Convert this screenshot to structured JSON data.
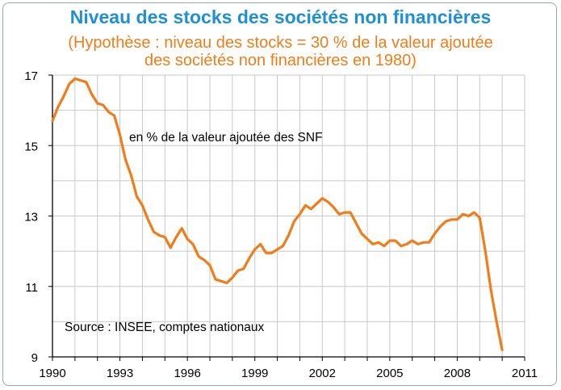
{
  "chart_data": {
    "type": "line",
    "title": "Niveau des stocks des sociétés non financières",
    "subtitle_lines": [
      "(Hypothèse : niveau des stocks = 30 % de la valeur ajoutée",
      "des sociétés non financières en 1980)"
    ],
    "ylabel_note": "en % de la valeur ajoutée des SNF",
    "source": "Source : INSEE, comptes nationaux",
    "xlim": [
      1990,
      2011
    ],
    "ylim": [
      9,
      17
    ],
    "x_ticks": [
      1990,
      1993,
      1996,
      1999,
      2002,
      2005,
      2008,
      2011
    ],
    "y_ticks": [
      9,
      11,
      13,
      15,
      17
    ],
    "grid": true,
    "series": [
      {
        "name": "Niveau des stocks",
        "color": "#f07d1a",
        "x": [
          1990.0,
          1990.25,
          1990.5,
          1990.75,
          1991.0,
          1991.25,
          1991.5,
          1991.75,
          1992.0,
          1992.25,
          1992.5,
          1992.75,
          1993.0,
          1993.25,
          1993.5,
          1993.75,
          1994.0,
          1994.25,
          1994.5,
          1994.75,
          1995.0,
          1995.25,
          1995.5,
          1995.75,
          1996.0,
          1996.25,
          1996.5,
          1996.75,
          1997.0,
          1997.25,
          1997.5,
          1997.75,
          1998.0,
          1998.25,
          1998.5,
          1998.75,
          1999.0,
          1999.25,
          1999.5,
          1999.75,
          2000.0,
          2000.25,
          2000.5,
          2000.75,
          2001.0,
          2001.25,
          2001.5,
          2001.75,
          2002.0,
          2002.25,
          2002.5,
          2002.75,
          2003.0,
          2003.25,
          2003.5,
          2003.75,
          2004.0,
          2004.25,
          2004.5,
          2004.75,
          2005.0,
          2005.25,
          2005.5,
          2005.75,
          2006.0,
          2006.25,
          2006.5,
          2006.75,
          2007.0,
          2007.25,
          2007.5,
          2007.75,
          2008.0,
          2008.25,
          2008.5,
          2008.75,
          2009.0,
          2009.25,
          2009.5,
          2009.75,
          2010.0
        ],
        "values": [
          15.7,
          16.1,
          16.4,
          16.75,
          16.9,
          16.85,
          16.8,
          16.45,
          16.2,
          16.15,
          15.95,
          15.85,
          15.3,
          14.6,
          14.15,
          13.55,
          13.3,
          12.9,
          12.55,
          12.45,
          12.4,
          12.1,
          12.4,
          12.65,
          12.35,
          12.2,
          11.85,
          11.75,
          11.6,
          11.2,
          11.15,
          11.1,
          11.25,
          11.45,
          11.5,
          11.8,
          12.05,
          12.2,
          11.95,
          11.95,
          12.05,
          12.15,
          12.45,
          12.85,
          13.05,
          13.3,
          13.2,
          13.35,
          13.5,
          13.4,
          13.25,
          13.05,
          13.1,
          13.1,
          12.8,
          12.5,
          12.35,
          12.2,
          12.25,
          12.15,
          12.3,
          12.3,
          12.15,
          12.2,
          12.3,
          12.2,
          12.25,
          12.25,
          12.5,
          12.7,
          12.85,
          12.9,
          12.9,
          13.05,
          13.0,
          13.1,
          12.95,
          12.0,
          10.9,
          10.0,
          9.2
        ]
      }
    ]
  }
}
